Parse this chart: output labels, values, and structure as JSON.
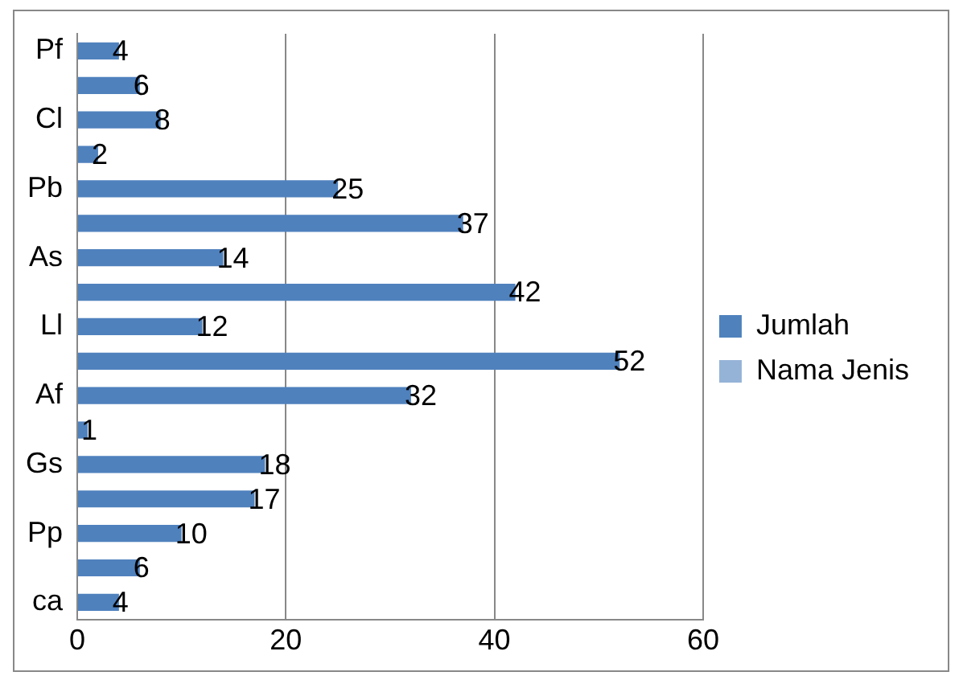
{
  "chart_data": {
    "type": "bar",
    "orientation": "horizontal",
    "categories": [
      "Pf",
      null,
      "Cl",
      null,
      "Pb",
      null,
      "As",
      null,
      "Ll",
      null,
      "Af",
      null,
      "Gs",
      null,
      "Pp",
      null,
      "ca"
    ],
    "series": [
      {
        "name": "Jumlah",
        "color": "#4f81bd",
        "values": [
          4,
          6,
          8,
          2,
          25,
          37,
          14,
          42,
          12,
          52,
          32,
          1,
          18,
          17,
          10,
          6,
          4
        ]
      },
      {
        "name": "Nama Jenis",
        "color": "#95b3d7",
        "values": [
          null,
          null,
          null,
          null,
          null,
          null,
          null,
          null,
          null,
          null,
          null,
          null,
          null,
          null,
          null,
          null,
          null
        ]
      }
    ],
    "xlim": [
      0,
      60
    ],
    "xticks": [
      0,
      20,
      40,
      60
    ],
    "grid": "x",
    "legend": "right",
    "data_labels": true
  }
}
